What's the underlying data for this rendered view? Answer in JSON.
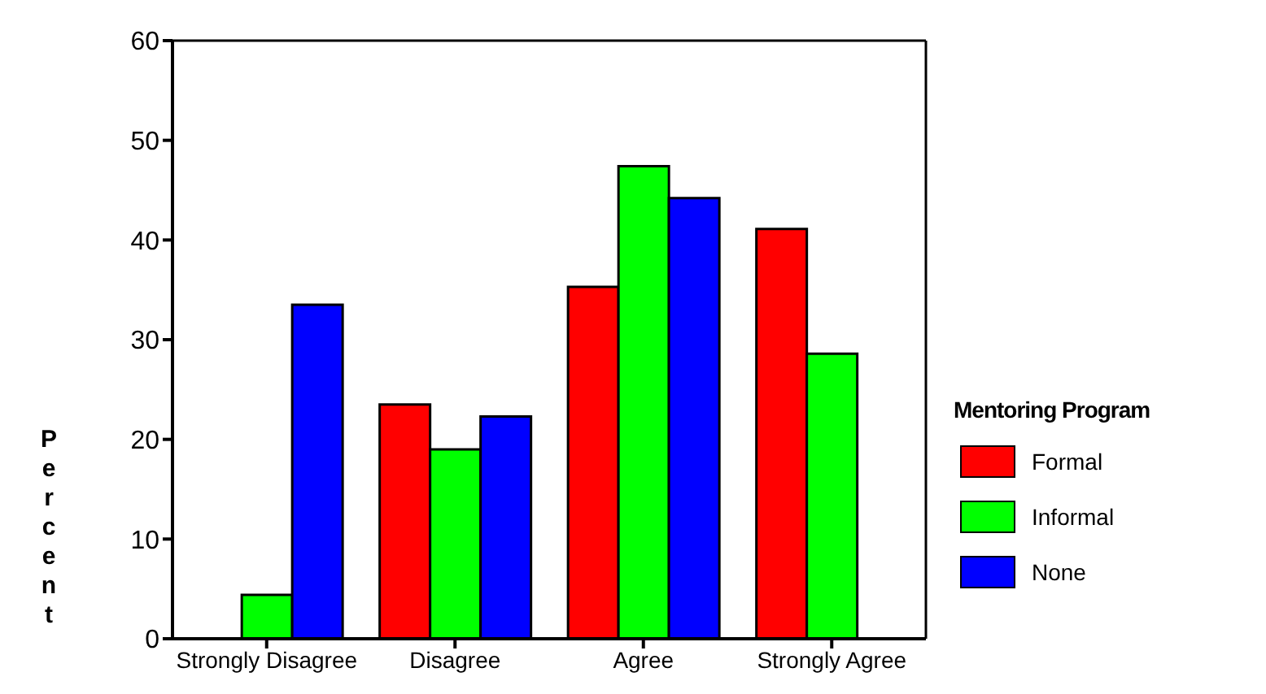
{
  "chart_data": {
    "type": "bar",
    "categories": [
      "Strongly Disagree",
      "Disagree",
      "Agree",
      "Strongly Agree"
    ],
    "ylabel": "Percent",
    "legend_title": "Mentoring Program",
    "series": [
      {
        "name": "Formal",
        "color": "#ff0000",
        "values": [
          0,
          23.5,
          35.3,
          41.1
        ]
      },
      {
        "name": "Informal",
        "color": "#00ff00",
        "values": [
          4.4,
          19.0,
          47.4,
          28.6
        ]
      },
      {
        "name": "None",
        "color": "#0000ff",
        "values": [
          33.5,
          22.3,
          44.2,
          0
        ]
      }
    ],
    "ylim": [
      0,
      60
    ],
    "yticks": [
      0,
      10,
      20,
      30,
      40,
      50,
      60
    ],
    "grid": false,
    "legend": "right"
  }
}
